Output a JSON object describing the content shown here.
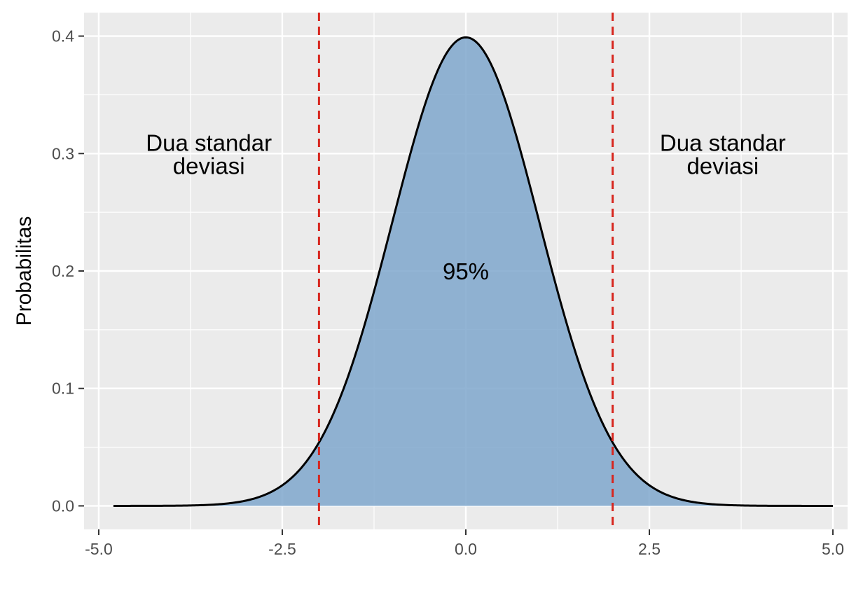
{
  "chart_data": {
    "type": "area",
    "title": "",
    "xlabel": "",
    "ylabel": "Probabilitas",
    "xlim": [
      -5.2,
      5.2
    ],
    "ylim": [
      -0.02,
      0.42
    ],
    "x_ticks": [
      -5.0,
      -2.5,
      0.0,
      2.5,
      5.0
    ],
    "x_tick_labels": [
      "-5.0",
      "-2.5",
      "0.0",
      "2.5",
      "5.0"
    ],
    "y_ticks": [
      0.0,
      0.1,
      0.2,
      0.3,
      0.4
    ],
    "y_tick_labels": [
      "0.0",
      "0.1",
      "0.2",
      "0.3",
      "0.4"
    ],
    "grid": true,
    "distribution": "normal",
    "mean": 0,
    "sd": 1,
    "x_range": [
      -4.8,
      5.0
    ],
    "curve_color": "#000000",
    "fill_color": "#7fa7cd",
    "fill_region": [
      -4.8,
      5.0
    ],
    "panel_background": "#ebebeb",
    "grid_color": "#ffffff",
    "vlines": [
      {
        "x": -2,
        "color": "#d7261e",
        "style": "dashed"
      },
      {
        "x": 2,
        "color": "#d7261e",
        "style": "dashed"
      }
    ],
    "annotations": [
      {
        "x": -3.5,
        "y": 0.3,
        "lines": [
          "Dua standar",
          "deviasi"
        ]
      },
      {
        "x": 3.5,
        "y": 0.3,
        "lines": [
          "Dua standar",
          "deviasi"
        ]
      },
      {
        "x": 0.0,
        "y": 0.2,
        "lines": [
          "95%"
        ]
      }
    ]
  }
}
